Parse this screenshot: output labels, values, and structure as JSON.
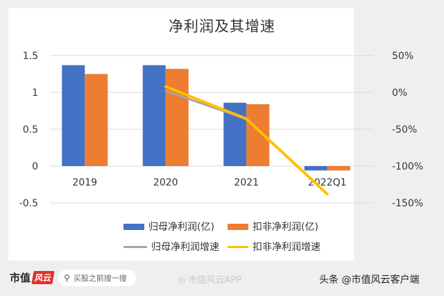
{
  "colors": {
    "bar1": "#4472c4",
    "bar2": "#ed7d31",
    "line1": "#a5a5a5",
    "line2": "#ffc000",
    "grid": "#d9d9d9"
  },
  "chart_data": {
    "type": "bar",
    "title": "净利润及其增速",
    "categories": [
      "2019",
      "2020",
      "2021",
      "2022Q1"
    ],
    "ylim": [
      -0.5,
      1.5
    ],
    "y_ticks": [
      "1.5",
      "1",
      "0.5",
      "0",
      "-0.5"
    ],
    "y_tick_values": [
      1.5,
      1,
      0.5,
      0,
      -0.5
    ],
    "y2lim": [
      -150,
      50
    ],
    "y2_ticks": [
      "50%",
      "0%",
      "-50%",
      "-100%",
      "-150%"
    ],
    "y2_tick_values": [
      50,
      0,
      -50,
      -100,
      -150
    ],
    "grid": true,
    "legend_position": "bottom",
    "series": [
      {
        "name": "归母净利润(亿)",
        "type": "bar",
        "axis": "left",
        "values": [
          1.37,
          1.37,
          0.86,
          -0.06
        ]
      },
      {
        "name": "扣非净利润(亿)",
        "type": "bar",
        "axis": "left",
        "values": [
          1.25,
          1.32,
          0.84,
          -0.06
        ]
      },
      {
        "name": "归母净利润增速",
        "type": "line",
        "axis": "right",
        "values": [
          null,
          2,
          -36,
          -138
        ]
      },
      {
        "name": "扣非净利润增速",
        "type": "line",
        "axis": "right",
        "values": [
          null,
          8,
          -36,
          -138
        ]
      }
    ]
  },
  "footer": {
    "logo_text": "市值",
    "logo_badge": "风云",
    "search_placeholder": "买股之前搜一搜",
    "search_icon": "search-icon",
    "weibo_text": "市值风云APP",
    "weibo_icon": "weibo-icon",
    "toutiao_text": "头条 @市值风云客户端"
  }
}
